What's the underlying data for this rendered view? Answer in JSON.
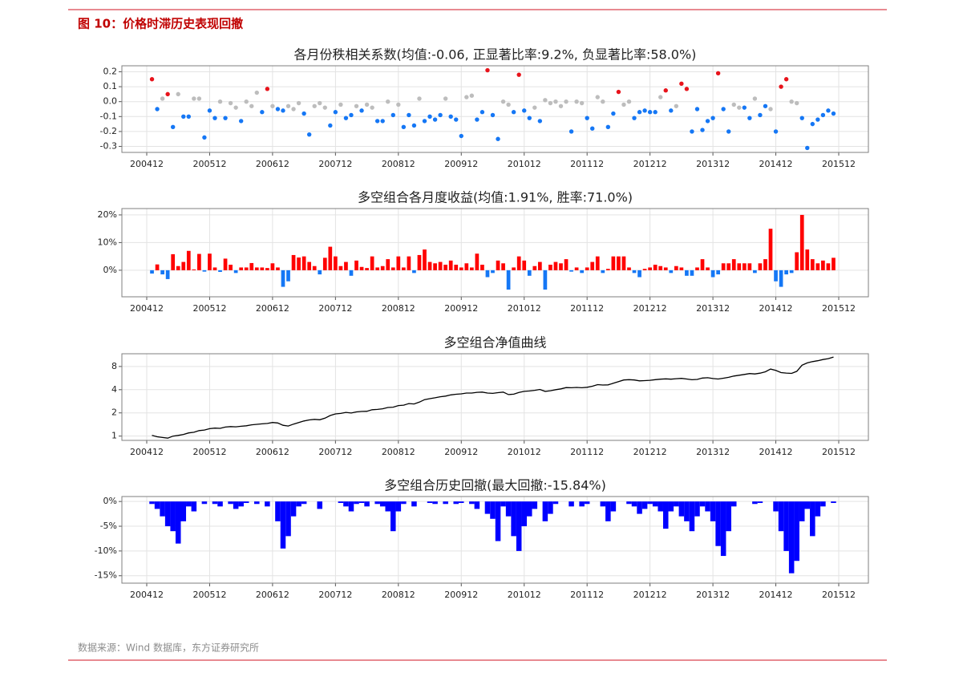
{
  "header": {
    "title": "图 10：价格时滞历史表现回撤"
  },
  "source": "数据来源：Wind 数据库，东方证券研究所",
  "chart_data": [
    {
      "type": "scatter",
      "title": "各月份秩相关系数(均值:-0.06, 正显著比率:9.2%, 负显著比率:58.0%)",
      "categories": [
        "200412",
        null,
        null,
        null,
        null,
        null,
        null,
        null,
        null,
        null,
        null,
        null,
        "200512",
        null,
        null,
        null,
        null,
        null,
        null,
        null,
        null,
        null,
        null,
        null,
        "200612",
        null,
        null,
        null,
        null,
        null,
        null,
        null,
        null,
        null,
        null,
        null,
        "200712",
        null,
        null,
        null,
        null,
        null,
        null,
        null,
        null,
        null,
        null,
        null,
        "200812",
        null,
        null,
        null,
        null,
        null,
        null,
        null,
        null,
        null,
        null,
        null,
        "200912",
        null,
        null,
        null,
        null,
        null,
        null,
        null,
        null,
        null,
        null,
        null,
        "201012",
        null,
        null,
        null,
        null,
        null,
        null,
        null,
        null,
        null,
        null,
        null,
        "201112",
        null,
        null,
        null,
        null,
        null,
        null,
        null,
        null,
        null,
        null,
        null,
        "201212",
        null,
        null,
        null,
        null,
        null,
        null,
        null,
        null,
        null,
        null,
        null,
        "201312",
        null,
        null,
        null,
        null,
        null,
        null,
        null,
        null,
        null,
        null,
        null,
        "201412",
        null,
        null,
        null,
        null,
        null,
        null,
        null,
        null,
        null,
        null,
        null,
        "201512"
      ],
      "values": [
        null,
        0.15,
        -0.05,
        0.02,
        0.05,
        -0.17,
        0.05,
        -0.1,
        -0.1,
        0.02,
        0.02,
        -0.24,
        -0.06,
        -0.11,
        0,
        -0.11,
        -0.01,
        -0.04,
        -0.13,
        0,
        -0.03,
        0.06,
        -0.07,
        0.085,
        -0.03,
        -0.05,
        -0.06,
        -0.03,
        -0.05,
        -0.01,
        -0.08,
        -0.22,
        -0.03,
        -0.01,
        -0.04,
        -0.16,
        -0.07,
        -0.02,
        -0.11,
        -0.09,
        -0.03,
        -0.06,
        -0.02,
        -0.04,
        -0.13,
        -0.13,
        0,
        -0.09,
        -0.02,
        -0.17,
        -0.09,
        -0.16,
        0.02,
        -0.13,
        -0.1,
        -0.12,
        -0.09,
        0.02,
        -0.1,
        -0.12,
        -0.23,
        0.03,
        0.04,
        -0.12,
        -0.07,
        0.21,
        -0.09,
        -0.25,
        0,
        -0.02,
        -0.07,
        0.18,
        -0.06,
        -0.11,
        -0.04,
        -0.13,
        0.01,
        -0.01,
        0,
        -0.03,
        0,
        -0.2,
        0,
        -0.01,
        -0.11,
        -0.18,
        0.03,
        0,
        -0.17,
        -0.08,
        0.065,
        -0.02,
        0,
        -0.11,
        -0.07,
        -0.06,
        -0.07,
        -0.07,
        0.03,
        0.075,
        -0.06,
        -0.03,
        0.12,
        0.085,
        -0.2,
        -0.05,
        -0.19,
        -0.13,
        -0.11,
        0.19,
        -0.05,
        -0.2,
        -0.02,
        -0.04,
        -0.04,
        -0.11,
        0.02,
        -0.09,
        -0.03,
        -0.05,
        -0.2,
        0.1,
        0.15,
        0,
        -0.01,
        -0.11,
        -0.31,
        -0.15,
        -0.12,
        -0.09,
        -0.06,
        -0.08,
        null
      ],
      "colors": [
        null,
        "#e8131b",
        "#1577f5",
        "#bdbdbd",
        "#e8131b",
        "#1577f5",
        "#bdbdbd",
        "#1577f5",
        "#1577f5",
        "#bdbdbd",
        "#bdbdbd",
        "#1577f5",
        "#1577f5",
        "#1577f5",
        "#bdbdbd",
        "#1577f5",
        "#bdbdbd",
        "#bdbdbd",
        "#1577f5",
        "#bdbdbd",
        "#bdbdbd",
        "#bdbdbd",
        "#1577f5",
        "#e8131b",
        "#bdbdbd",
        "#1577f5",
        "#1577f5",
        "#bdbdbd",
        "#bdbdbd",
        "#bdbdbd",
        "#1577f5",
        "#1577f5",
        "#bdbdbd",
        "#bdbdbd",
        "#bdbdbd",
        "#1577f5",
        "#1577f5",
        "#bdbdbd",
        "#1577f5",
        "#1577f5",
        "#bdbdbd",
        "#1577f5",
        "#bdbdbd",
        "#bdbdbd",
        "#1577f5",
        "#1577f5",
        "#bdbdbd",
        "#1577f5",
        "#bdbdbd",
        "#1577f5",
        "#1577f5",
        "#1577f5",
        "#bdbdbd",
        "#1577f5",
        "#1577f5",
        "#1577f5",
        "#1577f5",
        "#bdbdbd",
        "#1577f5",
        "#1577f5",
        "#1577f5",
        "#bdbdbd",
        "#bdbdbd",
        "#1577f5",
        "#1577f5",
        "#e8131b",
        "#1577f5",
        "#1577f5",
        "#bdbdbd",
        "#bdbdbd",
        "#1577f5",
        "#e8131b",
        "#1577f5",
        "#1577f5",
        "#bdbdbd",
        "#1577f5",
        "#bdbdbd",
        "#bdbdbd",
        "#bdbdbd",
        "#bdbdbd",
        "#bdbdbd",
        "#1577f5",
        "#bdbdbd",
        "#bdbdbd",
        "#1577f5",
        "#1577f5",
        "#bdbdbd",
        "#bdbdbd",
        "#1577f5",
        "#1577f5",
        "#e8131b",
        "#bdbdbd",
        "#bdbdbd",
        "#1577f5",
        "#1577f5",
        "#1577f5",
        "#1577f5",
        "#1577f5",
        "#bdbdbd",
        "#e8131b",
        "#1577f5",
        "#bdbdbd",
        "#e8131b",
        "#e8131b",
        "#1577f5",
        "#1577f5",
        "#1577f5",
        "#1577f5",
        "#1577f5",
        "#e8131b",
        "#1577f5",
        "#1577f5",
        "#bdbdbd",
        "#bdbdbd",
        "#1577f5",
        "#1577f5",
        "#bdbdbd",
        "#1577f5",
        "#1577f5",
        "#bdbdbd",
        "#1577f5",
        "#e8131b",
        "#e8131b",
        "#bdbdbd",
        "#bdbdbd",
        "#1577f5",
        "#1577f5",
        "#1577f5",
        "#1577f5",
        "#1577f5",
        "#1577f5",
        "#1577f5",
        null
      ],
      "ylim": [
        -0.34,
        0.24
      ],
      "yticks": [
        0.2,
        0.1,
        {
          "value": 0,
          "label": "0.0"
        },
        -0.1,
        -0.2,
        -0.3
      ],
      "grid": true
    },
    {
      "type": "bar",
      "title": "多空组合各月度收益(均值:1.91%, 胜率:71.0%)",
      "categories": [
        "200412",
        null,
        null,
        null,
        null,
        null,
        null,
        null,
        null,
        null,
        null,
        null,
        "200512",
        null,
        null,
        null,
        null,
        null,
        null,
        null,
        null,
        null,
        null,
        null,
        "200612",
        null,
        null,
        null,
        null,
        null,
        null,
        null,
        null,
        null,
        null,
        null,
        "200712",
        null,
        null,
        null,
        null,
        null,
        null,
        null,
        null,
        null,
        null,
        null,
        "200812",
        null,
        null,
        null,
        null,
        null,
        null,
        null,
        null,
        null,
        null,
        null,
        "200912",
        null,
        null,
        null,
        null,
        null,
        null,
        null,
        null,
        null,
        null,
        null,
        "201012",
        null,
        null,
        null,
        null,
        null,
        null,
        null,
        null,
        null,
        null,
        null,
        "201112",
        null,
        null,
        null,
        null,
        null,
        null,
        null,
        null,
        null,
        null,
        null,
        "201212",
        null,
        null,
        null,
        null,
        null,
        null,
        null,
        null,
        null,
        null,
        null,
        "201312",
        null,
        null,
        null,
        null,
        null,
        null,
        null,
        null,
        null,
        null,
        null,
        "201412",
        null,
        null,
        null,
        null,
        null,
        null,
        null,
        null,
        null,
        null,
        null,
        "201512"
      ],
      "values": [
        null,
        -1.2,
        2.1,
        -1.5,
        -3.2,
        5.8,
        1.5,
        3.0,
        7.0,
        0.3,
        5.9,
        -0.5,
        6.0,
        1.0,
        -0.6,
        4.2,
        2.0,
        -1.0,
        1.0,
        1.0,
        2.6,
        1.0,
        1.0,
        0.8,
        2.5,
        1.0,
        -6.0,
        -4.0,
        5.5,
        4.6,
        5.0,
        3.0,
        1.5,
        -1.5,
        4.5,
        8.5,
        5.0,
        1.5,
        3.0,
        -2.0,
        3.5,
        1.2,
        0.8,
        5.0,
        1.0,
        1.5,
        4.0,
        1.0,
        5.0,
        1.0,
        5.0,
        -1.0,
        5.5,
        7.5,
        3.0,
        2.5,
        3.0,
        2.0,
        3.5,
        2.0,
        1.0,
        2.5,
        1.0,
        6.0,
        2.0,
        -2.5,
        -1.0,
        3.5,
        2.5,
        -7.0,
        1.0,
        5.0,
        3.5,
        -2.0,
        1.5,
        3.0,
        -7.0,
        2.0,
        3.0,
        2.5,
        4.0,
        -0.5,
        1.0,
        -1.0,
        1.0,
        3.0,
        5.0,
        -1.0,
        0.5,
        5.0,
        5.0,
        5.0,
        1.0,
        -1.0,
        -2.5,
        0.5,
        1.0,
        2.0,
        1.5,
        1.0,
        -1.0,
        1.5,
        1.0,
        -2.0,
        -2.0,
        1.0,
        4.0,
        1.0,
        -2.5,
        -1.5,
        2.5,
        2.5,
        4.0,
        2.5,
        2.5,
        2.5,
        -1.0,
        2.5,
        4.0,
        15.0,
        -4.0,
        -6.0,
        -1.5,
        -1.0,
        6.5,
        20.0,
        7.5,
        4.0,
        2.5,
        3.5,
        2.5,
        4.5,
        null
      ],
      "positive_color": "#ff0000",
      "negative_color": "#1577f5",
      "ylim": [
        -9.6,
        22.3
      ],
      "yticks": [
        {
          "value": 20,
          "label": "20%"
        },
        {
          "value": 10,
          "label": "10%"
        },
        {
          "value": 0,
          "label": "0%"
        }
      ],
      "grid": true
    },
    {
      "type": "line",
      "title": "多空组合净值曲线",
      "categories": [
        "200412",
        null,
        null,
        null,
        null,
        null,
        null,
        null,
        null,
        null,
        null,
        null,
        "200512",
        null,
        null,
        null,
        null,
        null,
        null,
        null,
        null,
        null,
        null,
        null,
        "200612",
        null,
        null,
        null,
        null,
        null,
        null,
        null,
        null,
        null,
        null,
        null,
        "200712",
        null,
        null,
        null,
        null,
        null,
        null,
        null,
        null,
        null,
        null,
        null,
        "200812",
        null,
        null,
        null,
        null,
        null,
        null,
        null,
        null,
        null,
        null,
        null,
        "200912",
        null,
        null,
        null,
        null,
        null,
        null,
        null,
        null,
        null,
        null,
        null,
        "201012",
        null,
        null,
        null,
        null,
        null,
        null,
        null,
        null,
        null,
        null,
        null,
        "201112",
        null,
        null,
        null,
        null,
        null,
        null,
        null,
        null,
        null,
        null,
        null,
        "201212",
        null,
        null,
        null,
        null,
        null,
        null,
        null,
        null,
        null,
        null,
        null,
        "201312",
        null,
        null,
        null,
        null,
        null,
        null,
        null,
        null,
        null,
        null,
        null,
        "201412",
        null,
        null,
        null,
        null,
        null,
        null,
        null,
        null,
        null,
        null,
        null,
        "201512"
      ],
      "values": [
        null,
        1.02,
        0.98,
        0.96,
        0.94,
        1.0,
        1.02,
        1.05,
        1.1,
        1.12,
        1.18,
        1.2,
        1.25,
        1.27,
        1.26,
        1.31,
        1.33,
        1.32,
        1.34,
        1.36,
        1.4,
        1.42,
        1.44,
        1.46,
        1.5,
        1.48,
        1.38,
        1.35,
        1.43,
        1.5,
        1.57,
        1.62,
        1.65,
        1.63,
        1.71,
        1.85,
        1.94,
        1.97,
        2.03,
        1.99,
        2.06,
        2.09,
        2.1,
        2.2,
        2.22,
        2.26,
        2.35,
        2.37,
        2.49,
        2.52,
        2.64,
        2.61,
        2.76,
        2.97,
        3.06,
        3.14,
        3.24,
        3.3,
        3.42,
        3.49,
        3.53,
        3.62,
        3.62,
        3.7,
        3.72,
        3.62,
        3.58,
        3.66,
        3.72,
        3.46,
        3.5,
        3.68,
        3.8,
        3.85,
        3.92,
        4.03,
        3.8,
        3.88,
        4.0,
        4.1,
        4.26,
        4.24,
        4.28,
        4.24,
        4.3,
        4.43,
        4.65,
        4.6,
        4.62,
        4.85,
        5.09,
        5.34,
        5.4,
        5.34,
        5.21,
        5.24,
        5.29,
        5.4,
        5.48,
        5.53,
        5.48,
        5.56,
        5.61,
        5.5,
        5.39,
        5.44,
        5.66,
        5.72,
        5.58,
        5.5,
        5.64,
        5.78,
        6.01,
        6.16,
        6.31,
        6.47,
        6.4,
        6.56,
        6.82,
        7.4,
        7.1,
        6.67,
        6.57,
        6.5,
        6.93,
        8.3,
        8.9,
        9.25,
        9.5,
        9.85,
        10.1,
        10.6,
        null
      ],
      "color": "#000000",
      "log_scale": true,
      "ylim": [
        0.88,
        11.7
      ],
      "yticks": [
        8,
        4,
        2,
        1
      ],
      "grid": true
    },
    {
      "type": "bar",
      "title": "多空组合历史回撤(最大回撤:-15.84%)",
      "categories": [
        "200412",
        null,
        null,
        null,
        null,
        null,
        null,
        null,
        null,
        null,
        null,
        null,
        "200512",
        null,
        null,
        null,
        null,
        null,
        null,
        null,
        null,
        null,
        null,
        null,
        "200612",
        null,
        null,
        null,
        null,
        null,
        null,
        null,
        null,
        null,
        null,
        null,
        "200712",
        null,
        null,
        null,
        null,
        null,
        null,
        null,
        null,
        null,
        null,
        null,
        "200812",
        null,
        null,
        null,
        null,
        null,
        null,
        null,
        null,
        null,
        null,
        null,
        "200912",
        null,
        null,
        null,
        null,
        null,
        null,
        null,
        null,
        null,
        null,
        null,
        "201012",
        null,
        null,
        null,
        null,
        null,
        null,
        null,
        null,
        null,
        null,
        null,
        "201112",
        null,
        null,
        null,
        null,
        null,
        null,
        null,
        null,
        null,
        null,
        null,
        "201212",
        null,
        null,
        null,
        null,
        null,
        null,
        null,
        null,
        null,
        null,
        null,
        "201312",
        null,
        null,
        null,
        null,
        null,
        null,
        null,
        null,
        null,
        null,
        null,
        "201412",
        null,
        null,
        null,
        null,
        null,
        null,
        null,
        null,
        null,
        null,
        null,
        "201512"
      ],
      "values": [
        null,
        -0.5,
        -1.5,
        -3.0,
        -5.0,
        -6.0,
        -8.5,
        -4.0,
        -1.0,
        -2.0,
        0,
        -0.5,
        0,
        -0.5,
        -1.0,
        0,
        -0.5,
        -1.5,
        -1.0,
        -0.3,
        0,
        -0.5,
        0,
        -1.0,
        0,
        -4.0,
        -9.5,
        -7.0,
        -3.0,
        -1.0,
        -0.5,
        0,
        0,
        -1.5,
        0,
        0,
        0,
        -0.3,
        -1.0,
        -2.0,
        -0.5,
        -0.3,
        -1.0,
        0,
        -0.5,
        -1.0,
        -2.0,
        -6.0,
        -2.0,
        -0.5,
        0,
        -1.0,
        0,
        0,
        -0.3,
        -0.5,
        0,
        -0.5,
        0,
        -0.5,
        -0.3,
        0,
        -0.5,
        -1.5,
        0,
        -2.5,
        -3.5,
        -8.0,
        -1.0,
        -3.0,
        -7.0,
        -10.0,
        -5.0,
        -3.0,
        -1.5,
        0,
        -4.0,
        -2.5,
        -0.5,
        0,
        0,
        -1.0,
        0,
        -1.0,
        -0.5,
        0,
        0,
        -1.0,
        -4.0,
        -2.0,
        0,
        0,
        -0.5,
        -1.0,
        -2.5,
        -1.5,
        -0.5,
        -1.0,
        -2.0,
        -5.5,
        -2.0,
        -1.0,
        -3.0,
        -4.0,
        -6.0,
        -3.0,
        -1.0,
        -2.0,
        -4.0,
        -9.0,
        -11.0,
        -6.0,
        -1.0,
        0,
        0,
        0,
        -0.5,
        -0.3,
        0,
        0,
        -2.0,
        -6.0,
        -10.0,
        -14.5,
        -12.0,
        -4.0,
        -1.5,
        -7.0,
        -3.0,
        -1.0,
        0,
        -0.3,
        null
      ],
      "color": "#0000ff",
      "ylim": [
        -16.5,
        1.0
      ],
      "yticks": [
        {
          "value": 0,
          "label": "0%"
        },
        {
          "value": -5,
          "label": "-5%"
        },
        {
          "value": -10,
          "label": "-10%"
        },
        {
          "value": -15,
          "label": "-15%"
        }
      ],
      "grid": true
    }
  ]
}
